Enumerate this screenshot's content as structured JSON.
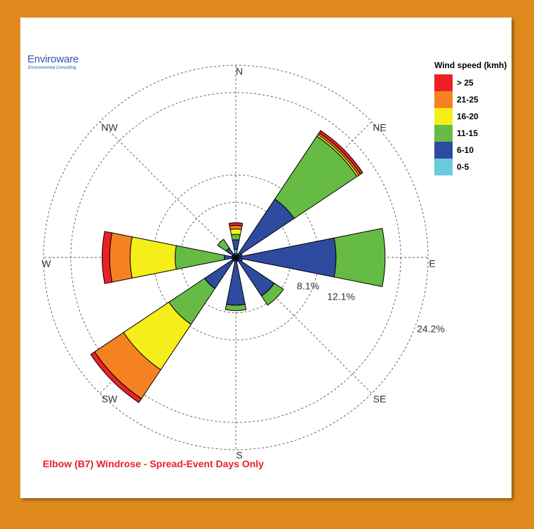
{
  "logo": {
    "name": "Enviroware",
    "tagline": "Environmental Consulting"
  },
  "chart_data": {
    "type": "windrose",
    "title": "Elbow (B7) Windrose - Spread-Event Days Only",
    "legend_title": "Wind speed (kmh)",
    "legend_placement": "top-right",
    "speed_bins": [
      {
        "label": "> 25",
        "color": "#EE2025"
      },
      {
        "label": "21-25",
        "color": "#F58220"
      },
      {
        "label": "16-20",
        "color": "#F5EE1A"
      },
      {
        "label": "11-15",
        "color": "#66BB45"
      },
      {
        "label": "6-10",
        "color": "#2F4BA0"
      },
      {
        "label": "0-5",
        "color": "#69CBDB"
      }
    ],
    "direction_labels": [
      "N",
      "NE",
      "E",
      "SE",
      "S",
      "SW",
      "W",
      "NW"
    ],
    "ring_labels": [
      "8.1%",
      "12.1%",
      "24.2%"
    ],
    "ring_values": [
      8.1,
      12.1,
      24.2
    ],
    "max_percent": 28.2,
    "grid": true,
    "sectors": [
      {
        "direction": "N",
        "angle": 0,
        "cumulative": [
          1.2,
          2.6,
          3.4,
          4.2,
          4.7,
          5.1
        ]
      },
      {
        "direction": "NNE",
        "angle": 22.5,
        "cumulative": [
          0.2,
          0.6,
          0.6,
          0.6,
          0.6,
          0.6
        ]
      },
      {
        "direction": "NE",
        "angle": 45,
        "cumulative": [
          0.4,
          10.3,
          21.4,
          21.7,
          22.0,
          22.4
        ]
      },
      {
        "direction": "ENE",
        "angle": 67.5,
        "cumulative": [
          0.2,
          1.0,
          1.0,
          1.0,
          1.0,
          1.0
        ]
      },
      {
        "direction": "E",
        "angle": 90,
        "cumulative": [
          0.4,
          14.7,
          21.9,
          21.9,
          21.9,
          21.9
        ]
      },
      {
        "direction": "ESE",
        "angle": 112.5,
        "cumulative": [
          0.2,
          1.0,
          1.0,
          1.0,
          1.0,
          1.0
        ]
      },
      {
        "direction": "SE",
        "angle": 135,
        "cumulative": [
          0.4,
          6.8,
          8.4,
          8.4,
          8.4,
          8.4
        ]
      },
      {
        "direction": "SSE",
        "angle": 157.5,
        "cumulative": [
          0.2,
          0.6,
          0.6,
          0.6,
          0.6,
          0.6
        ]
      },
      {
        "direction": "S",
        "angle": 180,
        "cumulative": [
          0.4,
          7.0,
          7.8,
          7.8,
          7.8,
          7.8
        ]
      },
      {
        "direction": "SSW",
        "angle": 202.5,
        "cumulative": [
          0.2,
          0.6,
          0.6,
          0.6,
          0.6,
          0.6
        ]
      },
      {
        "direction": "SW",
        "angle": 225,
        "cumulative": [
          0.4,
          5.5,
          11.8,
          19.8,
          24.9,
          25.6
        ]
      },
      {
        "direction": "WSW",
        "angle": 247.5,
        "cumulative": [
          0.2,
          0.6,
          0.6,
          0.6,
          0.6,
          0.6
        ]
      },
      {
        "direction": "W",
        "angle": 270,
        "cumulative": [
          0.4,
          1.7,
          8.9,
          15.5,
          18.5,
          19.6
        ]
      },
      {
        "direction": "WNW",
        "angle": 292.5,
        "cumulative": [
          0.2,
          0.6,
          0.6,
          0.6,
          0.6,
          0.6
        ]
      },
      {
        "direction": "NW",
        "angle": 315,
        "cumulative": [
          0.4,
          1.7,
          3.2,
          3.2,
          3.2,
          3.2
        ]
      },
      {
        "direction": "NNW",
        "angle": 337.5,
        "cumulative": [
          0.2,
          0.6,
          0.6,
          0.6,
          0.6,
          0.6
        ]
      }
    ]
  }
}
